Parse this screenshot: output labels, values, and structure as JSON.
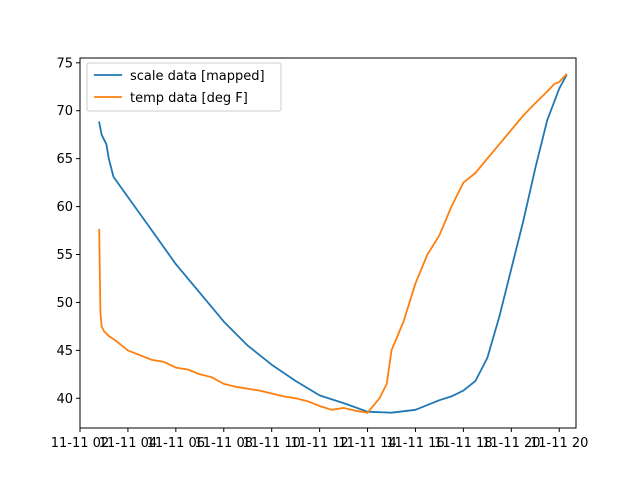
{
  "chart_data": {
    "type": "line",
    "title": "",
    "xlabel": "",
    "ylabel": "",
    "ylim": [
      36.9,
      75.5
    ],
    "yticks": [
      40,
      45,
      50,
      55,
      60,
      65,
      70,
      75
    ],
    "ytick_labels": [
      "40",
      "45",
      "50",
      "55",
      "60",
      "65",
      "70",
      "75"
    ],
    "xlim": [
      0,
      20.7
    ],
    "xticks": [
      0,
      2,
      4,
      6,
      8,
      10,
      12,
      14,
      16,
      18,
      20
    ],
    "xtick_labels": [
      "11-11 02",
      "11-11 04",
      "11-11 06",
      "11-11 08",
      "11-11 10",
      "11-11 12",
      "11-11 14",
      "11-11 16",
      "11-11 18",
      "11-11 20",
      "11-11 20"
    ],
    "grid": false,
    "legend": "upper-left",
    "series": [
      {
        "name": "scale data [mapped]",
        "color": "#1f77b4",
        "x": [
          0.8,
          0.9,
          1.1,
          1.2,
          1.4,
          2.0,
          3.0,
          4.0,
          5.0,
          6.0,
          7.0,
          8.0,
          9.0,
          10.0,
          11.0,
          12.0,
          13.0,
          14.0,
          15.0,
          15.5,
          16.0,
          16.5,
          17.0,
          17.5,
          18.0,
          18.5,
          19.0,
          19.5,
          20.0,
          20.3
        ],
        "y": [
          68.8,
          67.5,
          66.5,
          65.0,
          63.1,
          61.0,
          57.5,
          54.0,
          51.0,
          48.0,
          45.5,
          43.5,
          41.8,
          40.3,
          39.5,
          38.6,
          38.5,
          38.8,
          39.8,
          40.2,
          40.8,
          41.8,
          44.2,
          48.5,
          53.5,
          58.5,
          64.0,
          69.0,
          72.3,
          73.7
        ]
      },
      {
        "name": "temp data [deg F]",
        "color": "#ff7f0e",
        "x": [
          0.8,
          0.85,
          0.9,
          1.0,
          1.2,
          1.5,
          2.0,
          2.5,
          3.0,
          3.5,
          4.0,
          4.5,
          5.0,
          5.5,
          6.0,
          6.5,
          7.0,
          7.5,
          8.0,
          8.5,
          9.0,
          9.5,
          10.0,
          10.5,
          11.0,
          11.5,
          12.0,
          12.5,
          12.8,
          13.0,
          13.5,
          14.0,
          14.5,
          15.0,
          15.5,
          16.0,
          16.5,
          17.0,
          17.5,
          18.0,
          18.5,
          19.0,
          19.5,
          19.8,
          20.0,
          20.3
        ],
        "y": [
          57.6,
          49.0,
          47.5,
          47.0,
          46.5,
          46.0,
          45.0,
          44.5,
          44.0,
          43.8,
          43.2,
          43.0,
          42.5,
          42.2,
          41.5,
          41.2,
          41.0,
          40.8,
          40.5,
          40.2,
          40.0,
          39.7,
          39.2,
          38.8,
          39.0,
          38.7,
          38.5,
          40.0,
          41.5,
          45.0,
          48.0,
          52.0,
          55.0,
          57.0,
          60.0,
          62.5,
          63.5,
          65.0,
          66.5,
          68.0,
          69.5,
          70.8,
          72.0,
          72.8,
          73.0,
          73.8
        ]
      }
    ]
  }
}
